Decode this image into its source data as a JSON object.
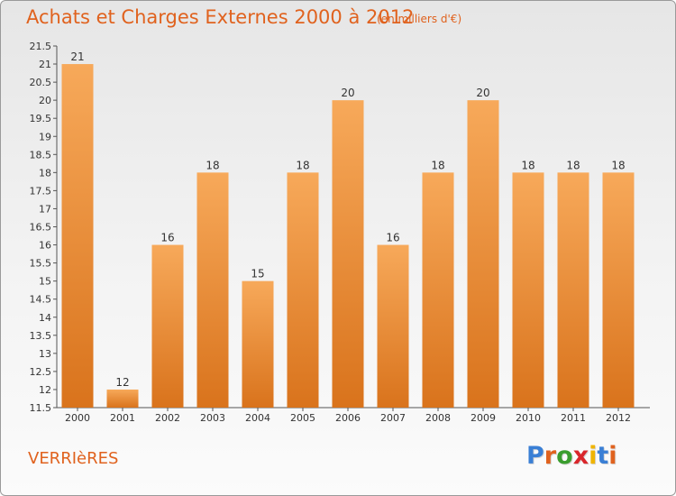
{
  "title": "Achats et Charges Externes 2000 à 2012",
  "subtitle": "(en milliers d'€)",
  "commune": "VERRIèRES",
  "logo": [
    "P",
    "r",
    "o",
    "x",
    "i",
    "t",
    "i"
  ],
  "logo_colors": [
    "#3a7fd5",
    "#e0621e",
    "#3a9d2e",
    "#d9262b",
    "#f0b400",
    "#3a7fd5",
    "#e0621e"
  ],
  "colors": {
    "bar_light": "#f7a95a",
    "bar_dark": "#d9731c",
    "accent": "#e0621e"
  },
  "chart_data": {
    "type": "bar",
    "categories": [
      "2000",
      "2001",
      "2002",
      "2003",
      "2004",
      "2005",
      "2006",
      "2007",
      "2008",
      "2009",
      "2010",
      "2011",
      "2012"
    ],
    "values": [
      21,
      12,
      16,
      18,
      15,
      18,
      20,
      16,
      18,
      20,
      18,
      18,
      18
    ],
    "value_labels": [
      "21",
      "12",
      "16",
      "18",
      "15",
      "18",
      "20",
      "16",
      "18",
      "20",
      "18",
      "18",
      "18"
    ],
    "y_ticks": [
      "11.5",
      "12",
      "12.5",
      "13",
      "13.5",
      "14",
      "14.5",
      "15",
      "15.5",
      "16",
      "16.5",
      "17",
      "17.5",
      "18",
      "18.5",
      "19",
      "19.5",
      "20",
      "20.5",
      "21",
      "21.5"
    ],
    "ylim": [
      11.5,
      21.5
    ],
    "title": "Achats et Charges Externes 2000 à 2012",
    "xlabel": "",
    "ylabel": "",
    "grid": false,
    "legend": "none"
  }
}
